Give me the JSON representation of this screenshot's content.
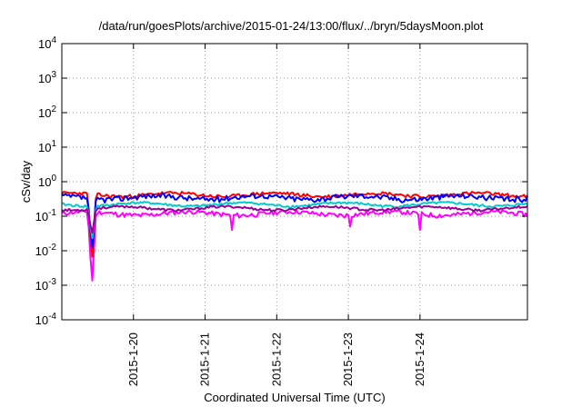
{
  "chart_data": {
    "type": "line",
    "title": "/data/run/goesPlots/archive/2015-01-24/13:00/flux/../bryn/5daysMoon.plot",
    "xlabel": "Coordinated Universal Time (UTC)",
    "ylabel": "cSv/day",
    "yscale": "log",
    "ylim": [
      0.0001,
      10000
    ],
    "xlim": [
      1421625600,
      1422187200
    ],
    "grid": true,
    "legend": "none",
    "y_ticks": [
      {
        "base": "10",
        "exp": "-4",
        "value": 0.0001
      },
      {
        "base": "10",
        "exp": "-3",
        "value": 0.001
      },
      {
        "base": "10",
        "exp": "-2",
        "value": 0.01
      },
      {
        "base": "10",
        "exp": "-1",
        "value": 0.1
      },
      {
        "base": "10",
        "exp": "0",
        "value": 1
      },
      {
        "base": "10",
        "exp": "1",
        "value": 10
      },
      {
        "base": "10",
        "exp": "2",
        "value": 100
      },
      {
        "base": "10",
        "exp": "3",
        "value": 1000
      },
      {
        "base": "10",
        "exp": "4",
        "value": 10000
      }
    ],
    "x_ticks": [
      {
        "label": "2015-1-20",
        "value": 1421712000
      },
      {
        "label": "2015-1-21",
        "value": 1421798400
      },
      {
        "label": "2015-1-22",
        "value": 1421884800
      },
      {
        "label": "2015-1-23",
        "value": 1421971200
      },
      {
        "label": "2015-1-24",
        "value": 1422057600
      }
    ],
    "series": [
      {
        "color": "#ff00ff",
        "base": 0.12,
        "amp": 0.15,
        "seed": 11,
        "dip": 0.001,
        "spikes": [
          [
            1421830000,
            0.04
          ],
          [
            1421973000,
            0.05
          ],
          [
            1422058000,
            0.04
          ]
        ]
      },
      {
        "color": "#ff0000",
        "base": 0.42,
        "amp": 0.12,
        "seed": 23,
        "dip": 0.005,
        "spikes": []
      },
      {
        "color": "#0000ff",
        "base": 0.35,
        "amp": 0.18,
        "seed": 37,
        "dip": 0.01,
        "spikes": []
      },
      {
        "color": "#00cccc",
        "base": 0.22,
        "amp": 0.08,
        "seed": 41,
        "dip": 0.02,
        "spikes": []
      },
      {
        "color": "#990099",
        "base": 0.17,
        "amp": 0.08,
        "seed": 53,
        "dip": 0.03,
        "spikes": []
      }
    ]
  }
}
